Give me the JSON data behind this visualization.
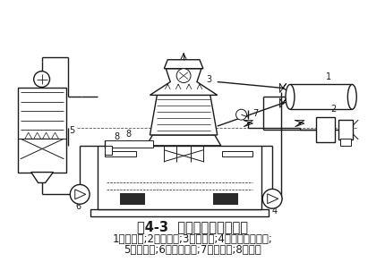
{
  "title": "图4-3  综合循环用水示意图",
  "caption_line1": "1一冷凝器;2一压缩机;3一冷却塔;4一冷却水循环泵;",
  "caption_line2": "5一冷风机;6一融霜水泵;7一补给水;8一水池",
  "bg_color": "#ffffff",
  "line_color": "#1a1a1a",
  "title_fontsize": 10.5,
  "caption_fontsize": 8.5,
  "fig_width": 4.3,
  "fig_height": 2.93,
  "dpi": 100
}
